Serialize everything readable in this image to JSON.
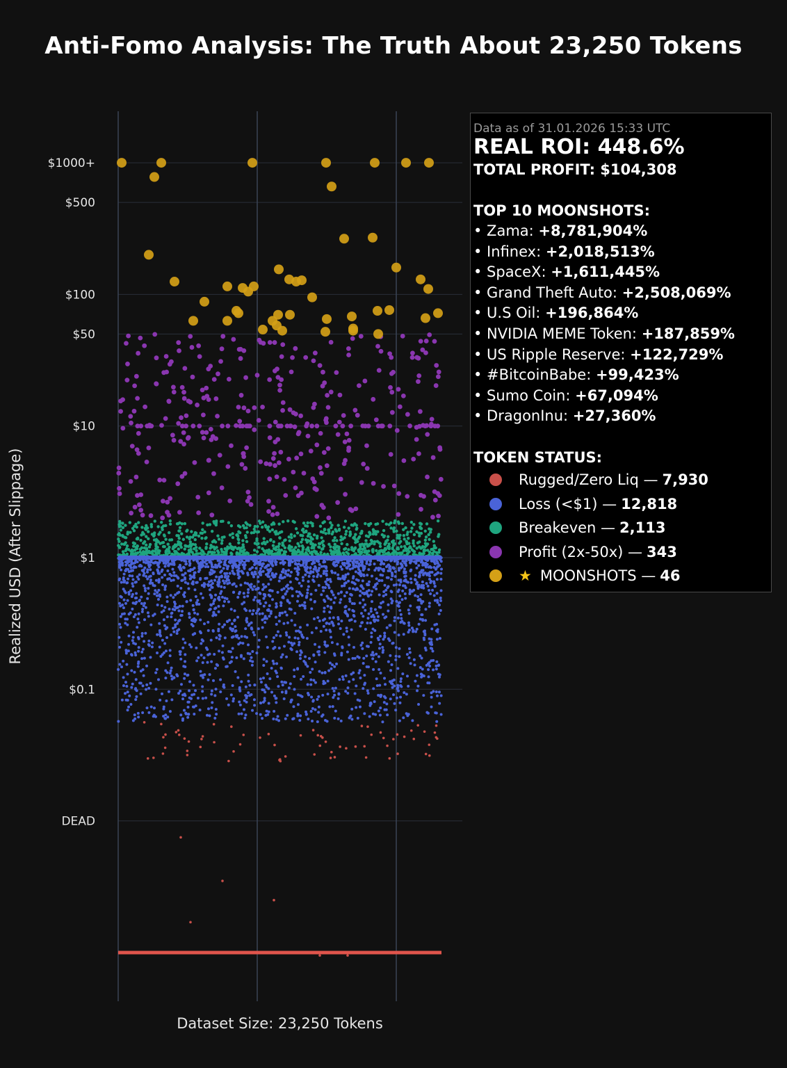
{
  "colors": {
    "background": "#111111",
    "grid": "#2a2f3a",
    "vgrid": "#3a4456",
    "rugged": "#c9504a",
    "loss": "#4a63d8",
    "breakeven": "#1fa57f",
    "profit": "#8a36b0",
    "moonshot": "#d4a017",
    "dead_line": "#e0554c"
  },
  "chart_data": {
    "type": "scatter",
    "title": "Anti-Fomo Analysis: The Truth About 23,250 Tokens",
    "xlabel": "Dataset Size: 23,250 Tokens",
    "ylabel": "Realized USD (After Slippage)",
    "y_scale": "log",
    "y_ticks": [
      {
        "label": "$1000+",
        "value": 1000
      },
      {
        "label": "$500",
        "value": 500
      },
      {
        "label": "$100",
        "value": 100
      },
      {
        "label": "$50",
        "value": 50
      },
      {
        "label": "$10",
        "value": 10
      },
      {
        "label": "$1",
        "value": 1
      },
      {
        "label": "$0.1",
        "value": 0.1
      },
      {
        "label": "DEAD",
        "value": 0.01
      }
    ],
    "x_range": [
      0,
      23250
    ],
    "vertical_gridlines_x": [
      0,
      10000,
      20000
    ],
    "grid": true,
    "legend_position": "right",
    "series": [
      {
        "name": "Rugged/Zero Liq",
        "count": 7930,
        "color": "#c9504a",
        "value_range": [
          0.001,
          0.05
        ],
        "dead_value": 0.001
      },
      {
        "name": "Loss (<$1)",
        "count": 12818,
        "color": "#4a63d8",
        "value_range": [
          0.05,
          1
        ]
      },
      {
        "name": "Breakeven",
        "count": 2113,
        "color": "#1fa57f",
        "value_range": [
          1,
          1.9
        ]
      },
      {
        "name": "Profit (2x-50x)",
        "count": 343,
        "color": "#8a36b0",
        "value_range": [
          2,
          50
        ]
      },
      {
        "name": "MOONSHOTS",
        "count": 46,
        "color": "#d4a017",
        "points": [
          {
            "x": 250,
            "y": 1000
          },
          {
            "x": 2200,
            "y": 200
          },
          {
            "x": 2600,
            "y": 780
          },
          {
            "x": 3100,
            "y": 1000
          },
          {
            "x": 4050,
            "y": 125
          },
          {
            "x": 5400,
            "y": 63
          },
          {
            "x": 6200,
            "y": 88
          },
          {
            "x": 7850,
            "y": 115
          },
          {
            "x": 7850,
            "y": 63
          },
          {
            "x": 8500,
            "y": 75
          },
          {
            "x": 8650,
            "y": 72
          },
          {
            "x": 8950,
            "y": 112
          },
          {
            "x": 9350,
            "y": 105
          },
          {
            "x": 9750,
            "y": 115
          },
          {
            "x": 9650,
            "y": 1000
          },
          {
            "x": 10400,
            "y": 54
          },
          {
            "x": 11100,
            "y": 63
          },
          {
            "x": 11400,
            "y": 58
          },
          {
            "x": 11500,
            "y": 70
          },
          {
            "x": 11550,
            "y": 155
          },
          {
            "x": 11800,
            "y": 53
          },
          {
            "x": 12350,
            "y": 70
          },
          {
            "x": 12300,
            "y": 130
          },
          {
            "x": 12800,
            "y": 125
          },
          {
            "x": 13200,
            "y": 128
          },
          {
            "x": 13950,
            "y": 95
          },
          {
            "x": 14900,
            "y": 52
          },
          {
            "x": 15000,
            "y": 65
          },
          {
            "x": 14950,
            "y": 1000
          },
          {
            "x": 15350,
            "y": 660
          },
          {
            "x": 16250,
            "y": 265
          },
          {
            "x": 16800,
            "y": 68
          },
          {
            "x": 16900,
            "y": 55
          },
          {
            "x": 16900,
            "y": 53
          },
          {
            "x": 18300,
            "y": 270
          },
          {
            "x": 18450,
            "y": 1000
          },
          {
            "x": 18650,
            "y": 75
          },
          {
            "x": 18700,
            "y": 50
          },
          {
            "x": 19500,
            "y": 76
          },
          {
            "x": 20000,
            "y": 160
          },
          {
            "x": 20700,
            "y": 1000
          },
          {
            "x": 21750,
            "y": 130
          },
          {
            "x": 22100,
            "y": 66
          },
          {
            "x": 22300,
            "y": 110
          },
          {
            "x": 22350,
            "y": 1000
          },
          {
            "x": 23000,
            "y": 72
          }
        ]
      }
    ]
  },
  "info": {
    "date": "Data as of 31.01.2026 15:33 UTC",
    "roi": "REAL ROI: 448.6%",
    "profit": "TOTAL PROFIT: $104,308",
    "moonshots_title": "TOP 10 MOONSHOTS:",
    "moonshots": [
      {
        "name": "• Zama: ",
        "pct": "+8,781,904%"
      },
      {
        "name": "• Infinex: ",
        "pct": "+2,018,513%"
      },
      {
        "name": "• SpaceX: ",
        "pct": "+1,611,445%"
      },
      {
        "name": "• Grand Theft Auto: ",
        "pct": "+2,508,069%"
      },
      {
        "name": "• U.S Oil: ",
        "pct": "+196,864%"
      },
      {
        "name": "• NVIDIA MEME Token: ",
        "pct": "+187,859%"
      },
      {
        "name": "• US Ripple Reserve: ",
        "pct": "+122,729%"
      },
      {
        "name": "• #BitcoinBabe: ",
        "pct": "+99,423%"
      },
      {
        "name": "• Sumo Coin: ",
        "pct": "+67,094%"
      },
      {
        "name": "• DragonInu: ",
        "pct": "+27,360%"
      }
    ],
    "status_title": "TOKEN STATUS:",
    "status": [
      {
        "label": "Rugged/Zero Liq — ",
        "count": "7,930",
        "color": "#c9504a",
        "star": ""
      },
      {
        "label": "Loss (<$1) — ",
        "count": "12,818",
        "color": "#4a63d8",
        "star": ""
      },
      {
        "label": "Breakeven — ",
        "count": "2,113",
        "color": "#1fa57f",
        "star": ""
      },
      {
        "label": "Profit (2x-50x) — ",
        "count": "343",
        "color": "#8a36b0",
        "star": ""
      },
      {
        "label": "MOONSHOTS  — ",
        "count": "46",
        "color": "#d4a017",
        "star": "★"
      }
    ]
  }
}
